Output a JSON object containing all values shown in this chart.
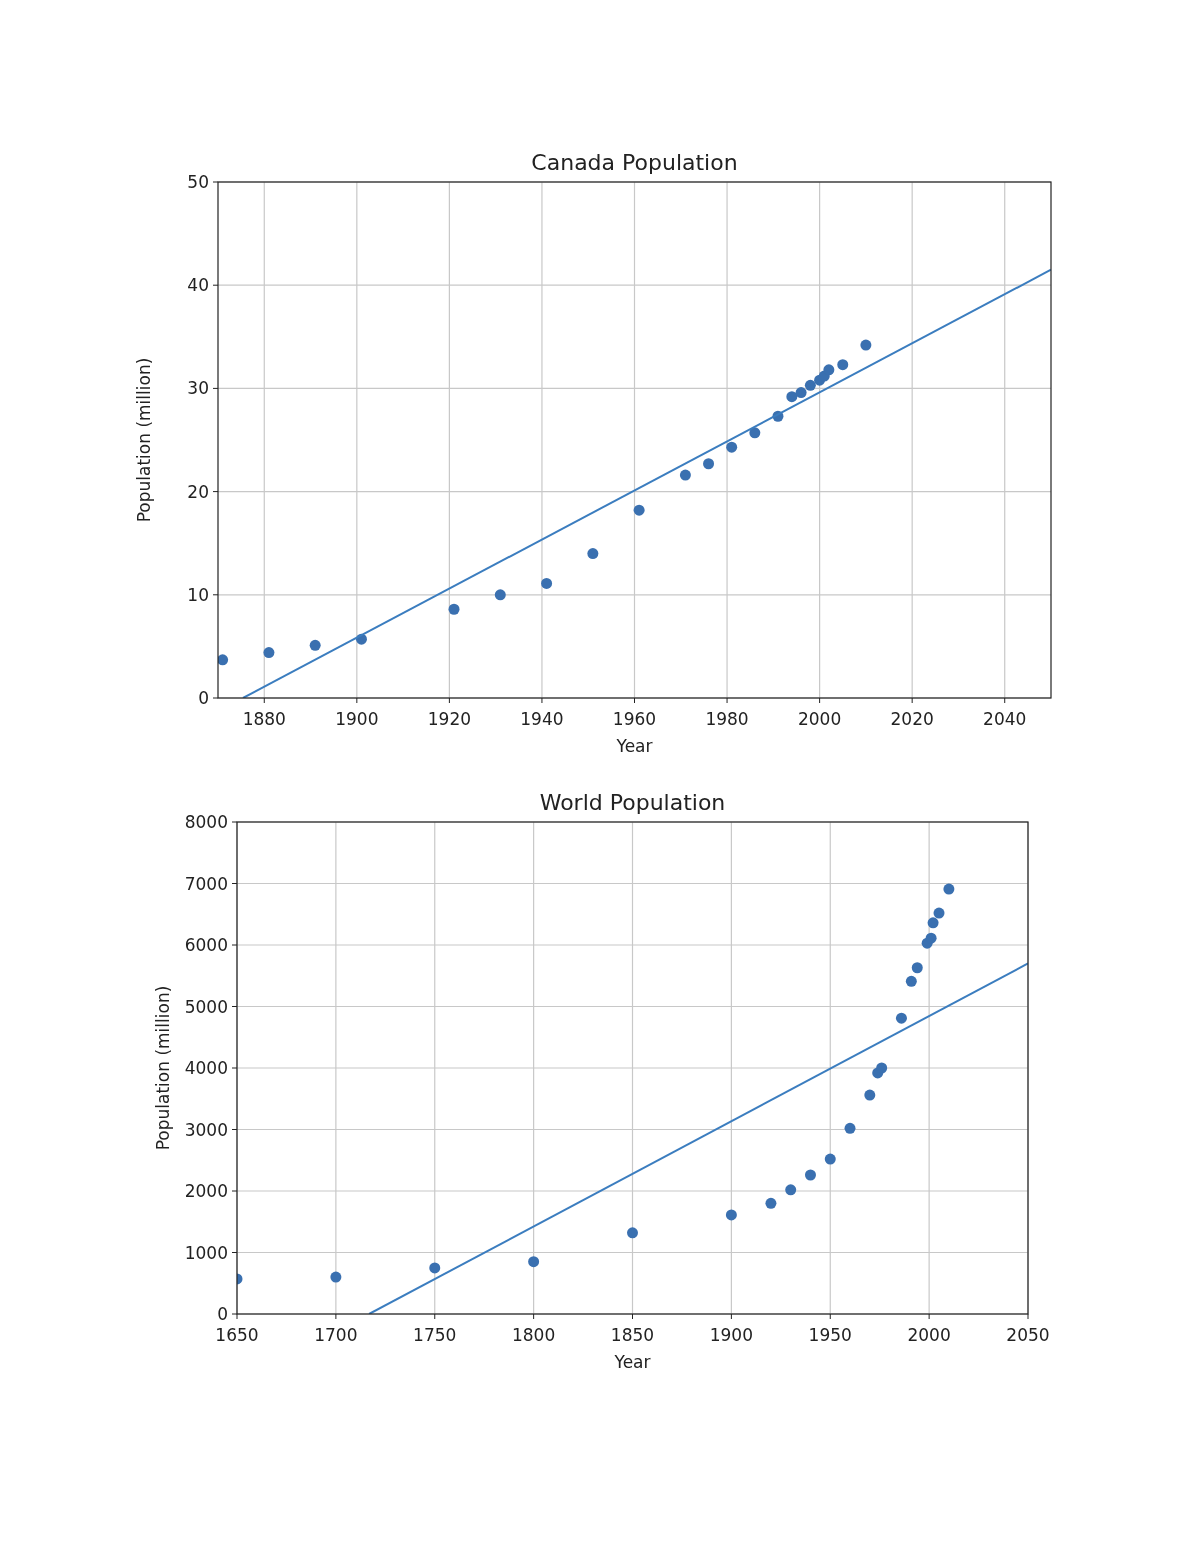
{
  "chart_data": [
    {
      "type": "scatter",
      "title": "Canada Population",
      "xlabel": "Year",
      "ylabel": "Population (million)",
      "xlim": [
        1870,
        2050
      ],
      "ylim": [
        0,
        50
      ],
      "xticks": [
        1880,
        1900,
        1920,
        1940,
        1960,
        1980,
        2000,
        2020,
        2040
      ],
      "yticks": [
        0,
        10,
        20,
        30,
        40,
        50
      ],
      "grid": true,
      "series": [
        {
          "marker": "circle",
          "color": "#3a70b0",
          "x": [
            1871,
            1881,
            1891,
            1901,
            1921,
            1931,
            1941,
            1951,
            1961,
            1971,
            1976,
            1981,
            1986,
            1991,
            1994,
            1996,
            1998,
            2000,
            2001,
            2002,
            2005,
            2010
          ],
          "values": [
            3.7,
            4.4,
            5.1,
            5.7,
            8.6,
            10.0,
            11.1,
            14.0,
            18.2,
            21.6,
            22.7,
            24.3,
            25.7,
            27.3,
            29.2,
            29.6,
            30.3,
            30.8,
            31.2,
            31.8,
            32.3,
            34.2
          ]
        },
        {
          "type": "line",
          "color": "#3b7dbf",
          "x": [
            1875.4,
            2050
          ],
          "values": [
            0,
            41.5
          ]
        }
      ]
    },
    {
      "type": "scatter",
      "title": "World Population",
      "xlabel": "Year",
      "ylabel": "Population (million)",
      "xlim": [
        1650,
        2050
      ],
      "ylim": [
        0,
        8000
      ],
      "xticks": [
        1650,
        1700,
        1750,
        1800,
        1850,
        1900,
        1950,
        2000,
        2050
      ],
      "yticks": [
        0,
        1000,
        2000,
        3000,
        4000,
        5000,
        6000,
        7000,
        8000
      ],
      "grid": true,
      "series": [
        {
          "marker": "circle",
          "color": "#3a70b0",
          "x": [
            1650,
            1700,
            1750,
            1800,
            1850,
            1900,
            1920,
            1930,
            1940,
            1950,
            1960,
            1970,
            1974,
            1976,
            1986,
            1991,
            1994,
            1999,
            2001,
            2002,
            2005,
            2010
          ],
          "values": [
            570,
            600,
            750,
            850,
            1320,
            1610,
            1800,
            2020,
            2260,
            2520,
            3020,
            3560,
            3920,
            4000,
            4810,
            5410,
            5630,
            6030,
            6110,
            6360,
            6520,
            6910
          ]
        },
        {
          "type": "line",
          "color": "#3b7dbf",
          "x": [
            1716.8,
            2050
          ],
          "values": [
            0,
            5700
          ]
        }
      ]
    }
  ]
}
